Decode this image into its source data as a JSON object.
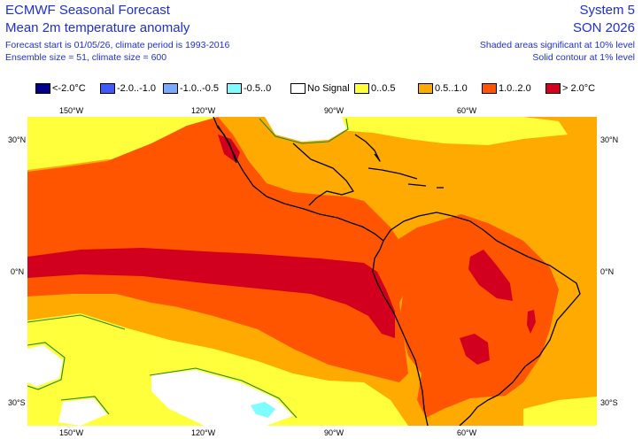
{
  "header": {
    "title_left": "ECMWF Seasonal Forecast",
    "subtitle_left": "Mean 2m temperature anomaly",
    "info_line1": "Forecast start is 01/05/26, climate period is 1993-2016",
    "info_line2": "Ensemble size = 51, climate size = 600",
    "title_right": "System 5",
    "subtitle_right": "SON 2026",
    "note_line1": "Shaded areas significant at 10% level",
    "note_line2": "Solid contour at 1% level"
  },
  "legend": [
    {
      "label": "<-2.0°C",
      "color": "#00008c"
    },
    {
      "label": "-2.0..-1.0",
      "color": "#3c5aff"
    },
    {
      "label": "-1.0..-0.5",
      "color": "#78aaff"
    },
    {
      "label": "-0.5..0",
      "color": "#7ffcff"
    },
    {
      "label": "No Signal",
      "color": "#ffffff"
    },
    {
      "label": "0..0.5",
      "color": "#ffff3c"
    },
    {
      "label": "0.5..1.0",
      "color": "#ffaa00"
    },
    {
      "label": "1.0..2.0",
      "color": "#ff5500"
    },
    {
      "label": "> 2.0°C",
      "color": "#d2001e"
    }
  ],
  "axes": {
    "top": [
      "150°W",
      "120°W",
      "90°W",
      "60°W"
    ],
    "bottom": [
      "150°W",
      "120°W",
      "90°W",
      "60°W"
    ],
    "left": [
      "30°N",
      "0°N",
      "30°S"
    ],
    "right": [
      "30°N",
      "0°N",
      "30°S"
    ]
  },
  "colors": {
    "text_blue": "#1f2fd0",
    "land_outline": "#000000",
    "significance_contour": "#1a8a1a"
  }
}
